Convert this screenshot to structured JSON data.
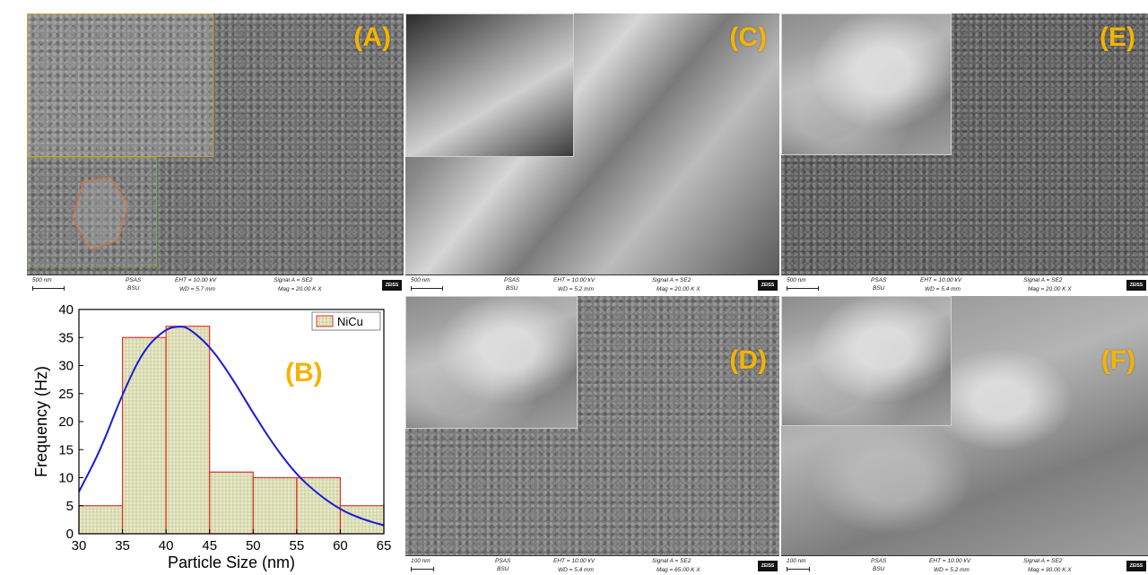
{
  "panels": {
    "A": {
      "letter": "(A)",
      "databar": {
        "scale": "500 nm",
        "org1": "PSAS",
        "org2": "BSU",
        "eht": "EHT = 10.00 kV",
        "wd": "WD = 5.7 mm",
        "signal": "Signal A = SE2",
        "mag": "Mag = 20.00 K X",
        "logo": "ZEISS"
      }
    },
    "C": {
      "letter": "(C)",
      "databar": {
        "scale": "500 nm",
        "org1": "PSAS",
        "org2": "BSU",
        "eht": "EHT = 10.00 kV",
        "wd": "WD = 5.2 mm",
        "signal": "Signal A = SE2",
        "mag": "Mag = 20.00 K X",
        "logo": "ZEISS"
      }
    },
    "E": {
      "letter": "(E)",
      "databar": {
        "scale": "500 nm",
        "org1": "PSAS",
        "org2": "BSU",
        "eht": "EHT = 10.00 kV",
        "wd": "WD = 5.4 mm",
        "signal": "Signal A = SE2",
        "mag": "Mag = 20.00 K X",
        "logo": "ZEISS"
      }
    },
    "D": {
      "letter": "(D)",
      "databar": {
        "scale": "100 nm",
        "org1": "PSAS",
        "org2": "BSU",
        "eht": "EHT = 10.00 kV",
        "wd": "WD = 5.4 mm",
        "signal": "Signal A = SE2",
        "mag": "Mag = 65.00 K X",
        "logo": "ZEISS"
      }
    },
    "F": {
      "letter": "(F)",
      "databar": {
        "scale": "100 nm",
        "org1": "PSAS",
        "org2": "BSU",
        "eht": "EHT = 10.00 kV",
        "wd": "WD = 5.2 mm",
        "signal": "Signal A = SE2",
        "mag": "Mag = 90.00 K X",
        "logo": "ZEISS"
      }
    }
  },
  "colors": {
    "panel_letter": "#f5b400",
    "bar_fill": "#e9ebc8",
    "bar_edge": "#e03030",
    "fit_curve": "#1a1ad6"
  },
  "chart_data": {
    "type": "bar",
    "panel_letter": "(B)",
    "xlabel": "Particle Size (nm)",
    "ylabel": "Frequency (Hz)",
    "xlim": [
      30,
      65
    ],
    "ylim": [
      0,
      40
    ],
    "xticks": [
      "30",
      "35",
      "40",
      "45",
      "50",
      "55",
      "60",
      "65"
    ],
    "yticks": [
      "0",
      "5",
      "10",
      "15",
      "20",
      "25",
      "30",
      "35",
      "40"
    ],
    "legend": "NiCu",
    "legend_position": "top-right",
    "bins": [
      [
        30,
        35
      ],
      [
        35,
        40
      ],
      [
        40,
        45
      ],
      [
        45,
        50
      ],
      [
        50,
        55
      ],
      [
        55,
        60
      ],
      [
        60,
        65
      ]
    ],
    "values": [
      5,
      35,
      37,
      11,
      10,
      10,
      5
    ],
    "fit_curve": {
      "type": "lognormal-like",
      "x": [
        30,
        32.5,
        35,
        37.5,
        40,
        41.5,
        42.5,
        45,
        47.5,
        50,
        52.5,
        55,
        57.5,
        60,
        62.5,
        65
      ],
      "y": [
        7.5,
        15,
        25,
        33,
        36.6,
        37,
        36.8,
        33.5,
        28,
        21.5,
        15.5,
        10.5,
        7,
        4.3,
        2.6,
        1.5
      ]
    }
  }
}
